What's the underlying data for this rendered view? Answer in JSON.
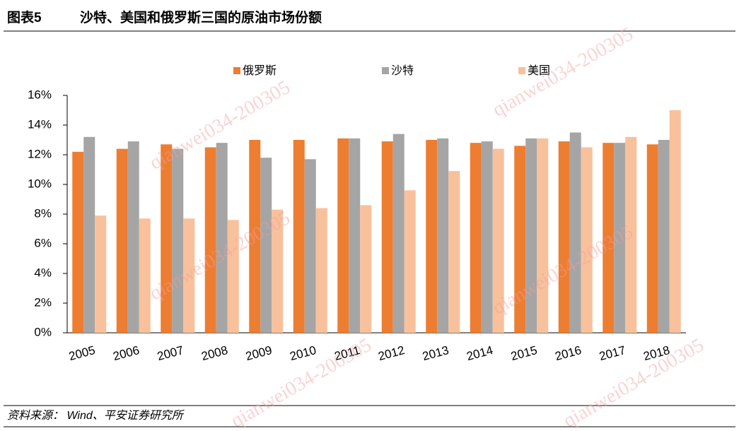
{
  "chart_data": {
    "type": "bar",
    "figure_label": "图表5",
    "title": "沙特、美国和俄罗斯三国的原油市场份额",
    "categories": [
      "2005",
      "2006",
      "2007",
      "2008",
      "2009",
      "2010",
      "2011",
      "2012",
      "2013",
      "2014",
      "2015",
      "2016",
      "2017",
      "2018"
    ],
    "series": [
      {
        "name": "俄罗斯",
        "color": "#ed7d31",
        "values": [
          12.2,
          12.4,
          12.7,
          12.5,
          13.0,
          13.0,
          13.1,
          12.9,
          13.0,
          12.8,
          12.6,
          12.9,
          12.8,
          12.7
        ]
      },
      {
        "name": "沙特",
        "color": "#a5a5a5",
        "values": [
          13.2,
          12.9,
          12.4,
          12.8,
          11.8,
          11.7,
          13.1,
          13.4,
          13.1,
          12.9,
          13.1,
          13.5,
          12.8,
          13.0
        ]
      },
      {
        "name": "美国",
        "color": "#f8c19b",
        "values": [
          7.9,
          7.7,
          7.7,
          7.6,
          8.3,
          8.4,
          8.6,
          9.6,
          10.9,
          12.4,
          13.1,
          12.5,
          13.2,
          15.0
        ]
      }
    ],
    "ylim": [
      0,
      16
    ],
    "yticks": [
      {
        "value": 0,
        "label": "0%"
      },
      {
        "value": 2,
        "label": "2%"
      },
      {
        "value": 4,
        "label": "4%"
      },
      {
        "value": 6,
        "label": "6%"
      },
      {
        "value": 8,
        "label": "8%"
      },
      {
        "value": 10,
        "label": "10%"
      },
      {
        "value": 12,
        "label": "12%"
      },
      {
        "value": 14,
        "label": "14%"
      },
      {
        "value": 16,
        "label": "16%"
      }
    ],
    "legend": "top",
    "source": "资料来源： Wind、平安证券研究所",
    "watermark": "qianwei034-200305"
  }
}
